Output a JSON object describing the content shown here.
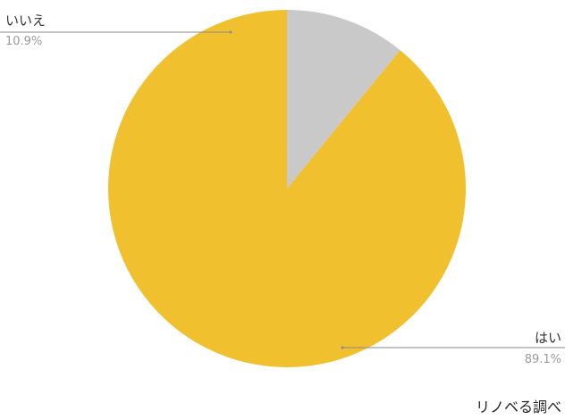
{
  "chart_data": {
    "type": "pie",
    "categories": [
      "はい",
      "いいえ"
    ],
    "values": [
      89.1,
      10.9
    ],
    "value_labels": [
      "89.1%",
      "10.9%"
    ],
    "colors": [
      "#f0c02f",
      "#c9c9c9"
    ],
    "start_angle": "12 o'clock",
    "direction": "counterclockwise",
    "legend": "none",
    "label_style": "outside labels with leader lines"
  },
  "source_credit": "リノベる調べ"
}
